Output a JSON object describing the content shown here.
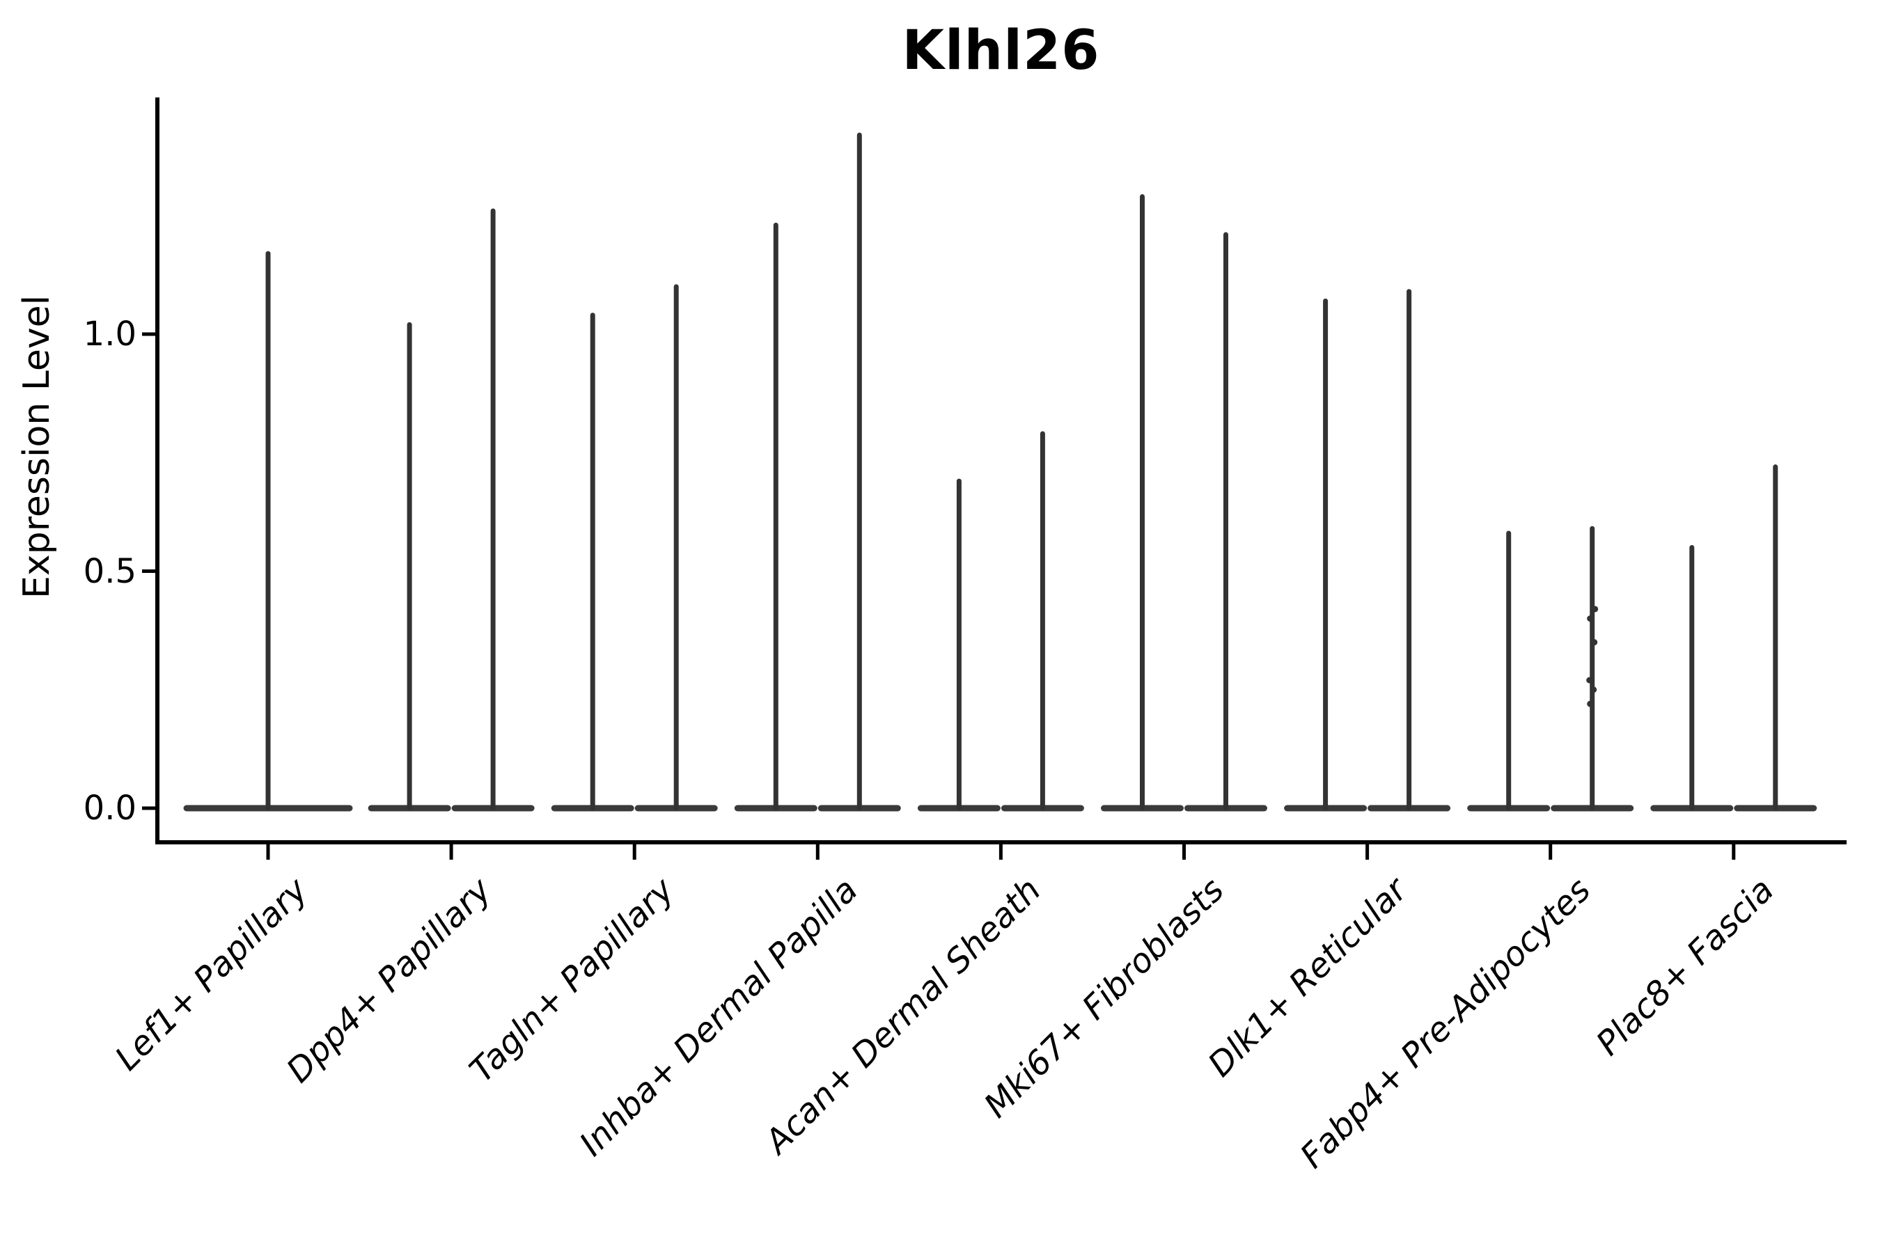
{
  "chart_data": {
    "type": "violin",
    "title": "Klhl26",
    "ylabel": "Expression Level",
    "xlabel": "",
    "ylim": [
      0,
      1.5
    ],
    "yticks": [
      0.0,
      0.5,
      1.0
    ],
    "ytick_labels": [
      "0.0",
      "0.5",
      "1.0"
    ],
    "legend": "none",
    "grid": false,
    "description": "Violin plot of gene expression; most density collapsed at 0 so each violin renders as a flat base with a thin spike to its maximum.",
    "groups": [
      {
        "label": "Lef1+ Papillary",
        "violins": [
          {
            "max": 1.17
          }
        ]
      },
      {
        "label": "Dpp4+ Papillary",
        "violins": [
          {
            "max": 1.02
          },
          {
            "max": 1.26
          }
        ]
      },
      {
        "label": "Tagln+ Papillary",
        "violins": [
          {
            "max": 1.04
          },
          {
            "max": 1.1
          }
        ]
      },
      {
        "label": "Inhba+ Dermal Papilla",
        "violins": [
          {
            "max": 1.23
          },
          {
            "max": 1.42
          }
        ]
      },
      {
        "label": "Acan+ Dermal Sheath",
        "violins": [
          {
            "max": 0.69
          },
          {
            "max": 0.79
          }
        ]
      },
      {
        "label": "Mki67+ Fibroblasts",
        "violins": [
          {
            "max": 1.29
          },
          {
            "max": 1.21
          }
        ]
      },
      {
        "label": "Dlk1+ Reticular",
        "violins": [
          {
            "max": 1.07
          },
          {
            "max": 1.09
          }
        ]
      },
      {
        "label": "Fabp4+ Pre-Adipocytes",
        "violins": [
          {
            "max": 0.58
          },
          {
            "max": 0.59,
            "points": [
              0.42,
              0.4,
              0.35,
              0.27,
              0.25,
              0.22
            ]
          }
        ]
      },
      {
        "label": "Plac8+ Fascia",
        "violins": [
          {
            "max": 0.55
          },
          {
            "max": 0.72
          }
        ]
      }
    ],
    "colors": {
      "violin_stroke": "#333333",
      "violin_base": "#3a3a3a",
      "axis": "#000000",
      "text": "#000000",
      "background": "#ffffff"
    }
  }
}
